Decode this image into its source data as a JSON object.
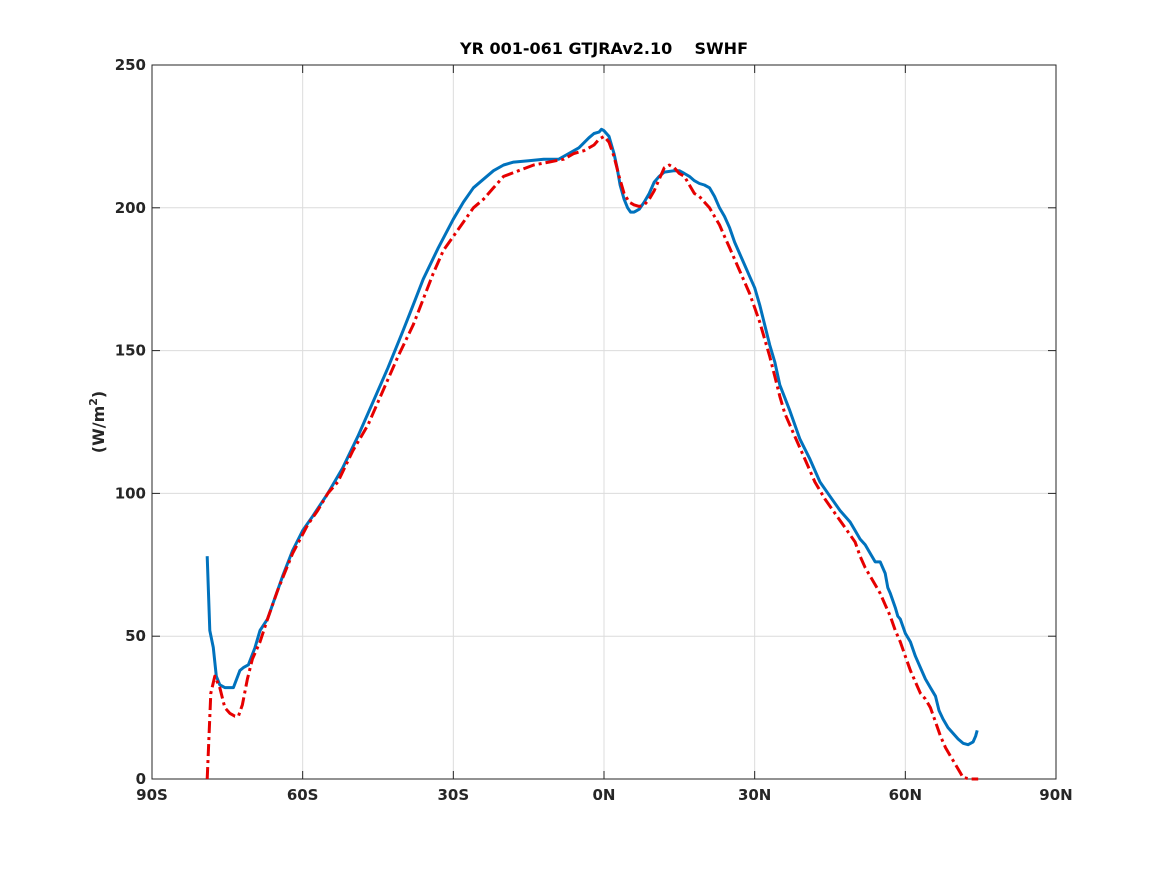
{
  "chart_data": {
    "type": "line",
    "title": "YR 001-061 GTJRAv2.10    SWHF",
    "xlabel": "",
    "ylabel": "(W/m2)",
    "ylabel_parts": {
      "main": "(W/m",
      "sup": "2",
      "tail": ")"
    },
    "xlim": [
      -90,
      90
    ],
    "ylim": [
      0,
      250
    ],
    "xticks": [
      -90,
      -60,
      -30,
      0,
      30,
      60,
      90
    ],
    "xtick_labels": [
      "90S",
      "60S",
      "30S",
      "0N",
      "30N",
      "60N",
      "90N"
    ],
    "yticks": [
      0,
      50,
      100,
      150,
      200,
      250
    ],
    "ytick_labels": [
      "0",
      "50",
      "100",
      "150",
      "200",
      "250"
    ],
    "grid": true,
    "legend": "none",
    "series": [
      {
        "color": "#0072BD",
        "style": "solid",
        "points": [
          [
            -79,
            78
          ],
          [
            -78.5,
            52
          ],
          [
            -77.8,
            46
          ],
          [
            -77.2,
            36
          ],
          [
            -76.5,
            33
          ],
          [
            -75.5,
            32
          ],
          [
            -74.5,
            32
          ],
          [
            -73.8,
            32
          ],
          [
            -72.5,
            38
          ],
          [
            -71.8,
            39
          ],
          [
            -70.8,
            40
          ],
          [
            -69.5,
            46
          ],
          [
            -68.5,
            52
          ],
          [
            -67,
            56
          ],
          [
            -66,
            61
          ],
          [
            -64,
            71
          ],
          [
            -62,
            80
          ],
          [
            -60,
            87
          ],
          [
            -58,
            92
          ],
          [
            -55,
            100
          ],
          [
            -52,
            109
          ],
          [
            -49,
            120
          ],
          [
            -46,
            132
          ],
          [
            -43,
            144
          ],
          [
            -40,
            157
          ],
          [
            -38,
            166
          ],
          [
            -36,
            175
          ],
          [
            -33,
            186
          ],
          [
            -30,
            196
          ],
          [
            -28,
            202
          ],
          [
            -26,
            207
          ],
          [
            -24,
            210
          ],
          [
            -22,
            213
          ],
          [
            -20,
            215
          ],
          [
            -18,
            216
          ],
          [
            -15,
            216.5
          ],
          [
            -12,
            217
          ],
          [
            -9,
            217
          ],
          [
            -7,
            219
          ],
          [
            -5,
            221
          ],
          [
            -3,
            224.5
          ],
          [
            -2,
            226
          ],
          [
            -1,
            226.5
          ],
          [
            -0.5,
            227.5
          ],
          [
            0,
            227
          ],
          [
            1,
            225
          ],
          [
            1.5,
            222
          ],
          [
            2,
            219
          ],
          [
            2.6,
            214
          ],
          [
            3.2,
            208
          ],
          [
            4,
            203
          ],
          [
            4.7,
            200
          ],
          [
            5.3,
            198.5
          ],
          [
            6,
            198.5
          ],
          [
            7,
            199.5
          ],
          [
            8,
            202
          ],
          [
            9,
            205
          ],
          [
            10,
            209
          ],
          [
            11,
            211
          ],
          [
            12,
            212.5
          ],
          [
            14,
            213
          ],
          [
            15,
            213
          ],
          [
            16,
            212
          ],
          [
            17,
            211
          ],
          [
            18,
            209.5
          ],
          [
            19,
            208.5
          ],
          [
            20,
            208
          ],
          [
            21,
            207
          ],
          [
            22,
            204
          ],
          [
            23,
            200
          ],
          [
            24,
            197
          ],
          [
            25,
            193
          ],
          [
            26,
            188
          ],
          [
            27,
            184
          ],
          [
            28,
            180
          ],
          [
            29,
            176
          ],
          [
            30,
            172
          ],
          [
            31,
            166
          ],
          [
            32,
            159
          ],
          [
            33,
            152
          ],
          [
            34,
            146
          ],
          [
            35,
            138
          ],
          [
            37,
            129
          ],
          [
            39,
            119
          ],
          [
            41,
            112
          ],
          [
            43,
            104
          ],
          [
            45,
            99
          ],
          [
            47,
            94
          ],
          [
            49,
            90
          ],
          [
            50,
            87
          ],
          [
            51,
            84
          ],
          [
            52,
            82
          ],
          [
            53,
            79
          ],
          [
            54,
            76
          ],
          [
            55,
            76
          ],
          [
            56,
            72
          ],
          [
            56.5,
            67
          ],
          [
            57,
            65
          ],
          [
            58,
            60
          ],
          [
            58.5,
            57
          ],
          [
            59,
            56
          ],
          [
            60,
            51
          ],
          [
            61,
            48
          ],
          [
            62,
            43
          ],
          [
            63,
            39
          ],
          [
            64,
            35
          ],
          [
            65,
            32
          ],
          [
            66,
            29
          ],
          [
            66.7,
            24
          ],
          [
            67.5,
            21
          ],
          [
            68.5,
            18
          ],
          [
            69.5,
            16
          ],
          [
            70.5,
            14
          ],
          [
            71.5,
            12.5
          ],
          [
            72.5,
            12
          ],
          [
            73.5,
            13
          ],
          [
            74,
            15
          ],
          [
            74.3,
            17
          ]
        ]
      },
      {
        "color": "#E60000",
        "style": "dashdot",
        "points": [
          [
            -79,
            0
          ],
          [
            -78.3,
            30
          ],
          [
            -77.5,
            36
          ],
          [
            -76.5,
            32
          ],
          [
            -75.5,
            25
          ],
          [
            -74.5,
            23
          ],
          [
            -73.5,
            22
          ],
          [
            -72.8,
            22
          ],
          [
            -72,
            26
          ],
          [
            -71,
            35
          ],
          [
            -70,
            42
          ],
          [
            -68.5,
            48
          ],
          [
            -67,
            56
          ],
          [
            -65,
            66
          ],
          [
            -62,
            79
          ],
          [
            -59,
            89
          ],
          [
            -57,
            94
          ],
          [
            -55,
            100
          ],
          [
            -53,
            104
          ],
          [
            -50,
            115
          ],
          [
            -47,
            124
          ],
          [
            -44,
            136
          ],
          [
            -41,
            148
          ],
          [
            -38,
            159
          ],
          [
            -36,
            168
          ],
          [
            -34,
            177
          ],
          [
            -32,
            185
          ],
          [
            -30,
            190
          ],
          [
            -28,
            195
          ],
          [
            -26,
            200
          ],
          [
            -24,
            203
          ],
          [
            -22,
            207
          ],
          [
            -20,
            211
          ],
          [
            -17,
            213
          ],
          [
            -14,
            215
          ],
          [
            -11,
            216
          ],
          [
            -8,
            217
          ],
          [
            -6,
            219
          ],
          [
            -4,
            220
          ],
          [
            -2,
            222
          ],
          [
            -1,
            224
          ],
          [
            0,
            225
          ],
          [
            1,
            223
          ],
          [
            2,
            218
          ],
          [
            3,
            211
          ],
          [
            4,
            205
          ],
          [
            5,
            202
          ],
          [
            6,
            201
          ],
          [
            7,
            200.5
          ],
          [
            8,
            201
          ],
          [
            9,
            203
          ],
          [
            10,
            206
          ],
          [
            11,
            210
          ],
          [
            12,
            214
          ],
          [
            13,
            215
          ],
          [
            14,
            214
          ],
          [
            15,
            212
          ],
          [
            16,
            211
          ],
          [
            17,
            208
          ],
          [
            18,
            205
          ],
          [
            19,
            204
          ],
          [
            20,
            202
          ],
          [
            21,
            200
          ],
          [
            22,
            197
          ],
          [
            23,
            194
          ],
          [
            24,
            190
          ],
          [
            25,
            186
          ],
          [
            26,
            182
          ],
          [
            27,
            178
          ],
          [
            28,
            174
          ],
          [
            29,
            170
          ],
          [
            30,
            165
          ],
          [
            31,
            160
          ],
          [
            32,
            154
          ],
          [
            33,
            148
          ],
          [
            34,
            141
          ],
          [
            35,
            134
          ],
          [
            36,
            128
          ],
          [
            38,
            120
          ],
          [
            40,
            112
          ],
          [
            42,
            104
          ],
          [
            44,
            98
          ],
          [
            46,
            93
          ],
          [
            48,
            88
          ],
          [
            50,
            83
          ],
          [
            51,
            78
          ],
          [
            52,
            74
          ],
          [
            53,
            71
          ],
          [
            54,
            68
          ],
          [
            55,
            65
          ],
          [
            56,
            61
          ],
          [
            57,
            57
          ],
          [
            58,
            52
          ],
          [
            59,
            48
          ],
          [
            60,
            43
          ],
          [
            61,
            38
          ],
          [
            62,
            34
          ],
          [
            63,
            30
          ],
          [
            64,
            28
          ],
          [
            65,
            25
          ],
          [
            66,
            20
          ],
          [
            67,
            15
          ],
          [
            68,
            11
          ],
          [
            69,
            8
          ],
          [
            70,
            5
          ],
          [
            71,
            2
          ],
          [
            71.5,
            0.5
          ],
          [
            73,
            0
          ],
          [
            74.5,
            0
          ]
        ]
      }
    ]
  }
}
